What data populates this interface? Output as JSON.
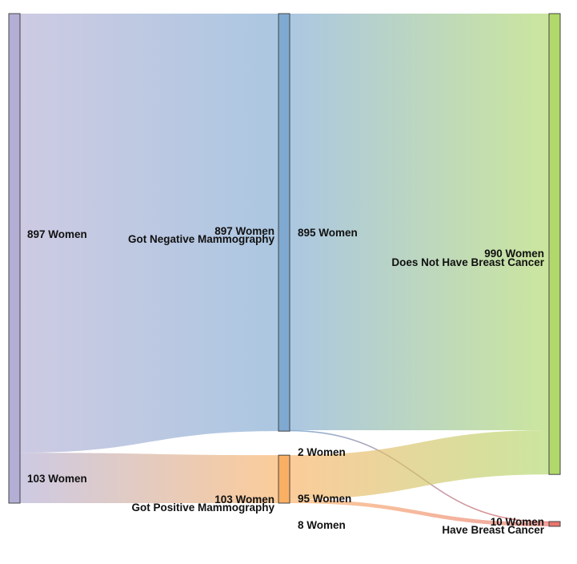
{
  "chart_data": {
    "type": "sankey",
    "nodes": [
      {
        "id": "total",
        "value": "",
        "label": "",
        "color": "#b3aed4"
      },
      {
        "id": "neg",
        "value": "897 Women",
        "label": "Got Negative Mammography",
        "color": "#7fa9d1"
      },
      {
        "id": "pos",
        "value": "103 Women",
        "label": "Got Positive Mammography",
        "color": "#f9b064"
      },
      {
        "id": "nocancer",
        "value": "990 Women",
        "label": "Does Not Have Breast Cancer",
        "color": "#b0d86a"
      },
      {
        "id": "cancer",
        "value": "10 Women",
        "label": "Have Breast Cancer",
        "color": "#e8756c"
      }
    ],
    "links": [
      {
        "source": "total",
        "target": "neg",
        "value": 897,
        "label": "897 Women"
      },
      {
        "source": "total",
        "target": "pos",
        "value": 103,
        "label": "103 Women"
      },
      {
        "source": "neg",
        "target": "nocancer",
        "value": 895,
        "label": "895 Women"
      },
      {
        "source": "neg",
        "target": "cancer",
        "value": 2,
        "label": "2 Women"
      },
      {
        "source": "pos",
        "target": "nocancer",
        "value": 95,
        "label": "95 Women"
      },
      {
        "source": "pos",
        "target": "cancer",
        "value": 8,
        "label": "8 Women"
      }
    ]
  }
}
